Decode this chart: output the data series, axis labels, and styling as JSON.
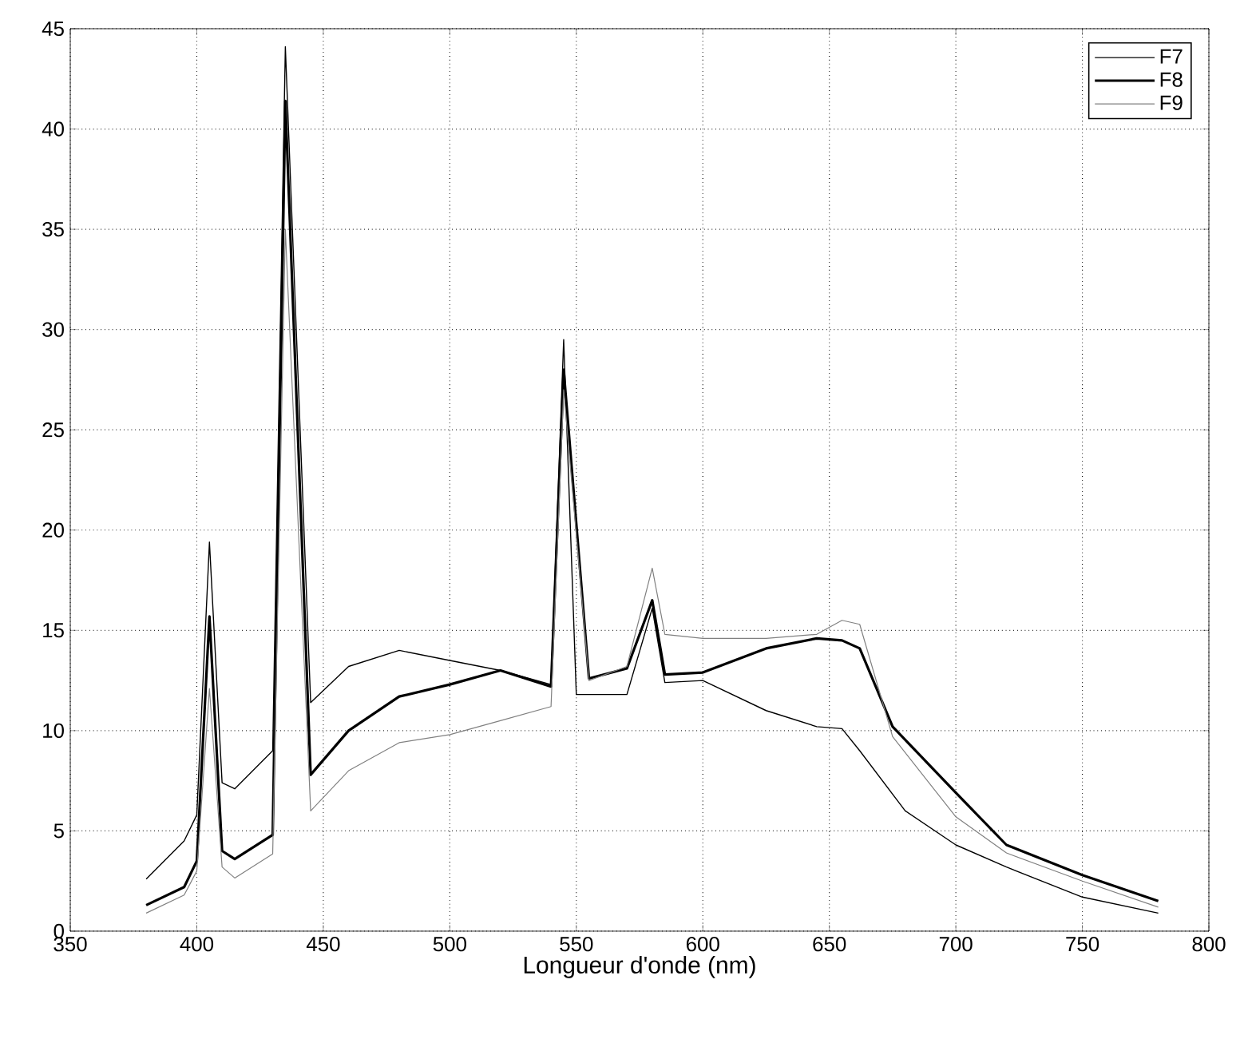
{
  "chart_data": {
    "type": "line",
    "xlabel": "Longueur d'onde (nm)",
    "xlim": [
      350,
      800
    ],
    "ylim": [
      0,
      45
    ],
    "xticks": [
      350,
      400,
      450,
      500,
      550,
      600,
      650,
      700,
      750,
      800
    ],
    "yticks": [
      0,
      5,
      10,
      15,
      20,
      25,
      30,
      35,
      40,
      45
    ],
    "grid": true,
    "legend": "top right",
    "line_style": "solid",
    "marker": "none",
    "series": [
      {
        "name": "F7",
        "color": "#000000",
        "x": [
          380,
          395,
          400,
          405,
          410,
          415,
          430,
          435,
          445,
          460,
          480,
          500,
          520,
          540,
          545,
          550,
          555,
          570,
          580,
          585,
          600,
          625,
          645,
          655,
          662,
          680,
          700,
          720,
          750,
          780
        ],
        "values": [
          2.6,
          4.5,
          5.8,
          19.4,
          7.4,
          7.1,
          9.0,
          44.1,
          11.4,
          13.2,
          14.0,
          13.5,
          13.0,
          12.3,
          29.5,
          11.8,
          11.8,
          11.8,
          16.1,
          12.4,
          12.5,
          11.0,
          10.2,
          10.1,
          9.0,
          6.0,
          4.3,
          3.2,
          1.7,
          0.9
        ]
      },
      {
        "name": "F8",
        "color": "#000000",
        "x": [
          380,
          395,
          400,
          405,
          410,
          415,
          430,
          435,
          445,
          460,
          480,
          500,
          520,
          540,
          545,
          555,
          570,
          580,
          585,
          600,
          625,
          645,
          655,
          662,
          675,
          700,
          720,
          750,
          780
        ],
        "values": [
          1.3,
          2.2,
          3.5,
          15.7,
          4.0,
          3.6,
          4.8,
          41.4,
          7.8,
          10.0,
          11.7,
          12.3,
          13.0,
          12.2,
          28,
          12.6,
          13.1,
          16.5,
          12.8,
          12.9,
          14.1,
          14.6,
          14.5,
          14.1,
          10.2,
          6.9,
          4.3,
          2.8,
          1.5
        ]
      },
      {
        "name": "F9",
        "color": "#808080",
        "x": [
          380,
          395,
          400,
          405,
          410,
          415,
          430,
          435,
          445,
          460,
          480,
          500,
          520,
          540,
          545,
          555,
          570,
          580,
          585,
          600,
          625,
          645,
          655,
          662,
          675,
          700,
          720,
          750,
          780
        ],
        "values": [
          0.9,
          1.8,
          3.0,
          12.1,
          3.2,
          2.65,
          3.85,
          35,
          6.0,
          8.0,
          9.4,
          9.8,
          10.5,
          11.2,
          27,
          12.5,
          13.2,
          18.1,
          14.8,
          14.6,
          14.6,
          14.8,
          15.5,
          15.3,
          9.7,
          5.7,
          3.9,
          2.5,
          1.2
        ]
      }
    ]
  }
}
